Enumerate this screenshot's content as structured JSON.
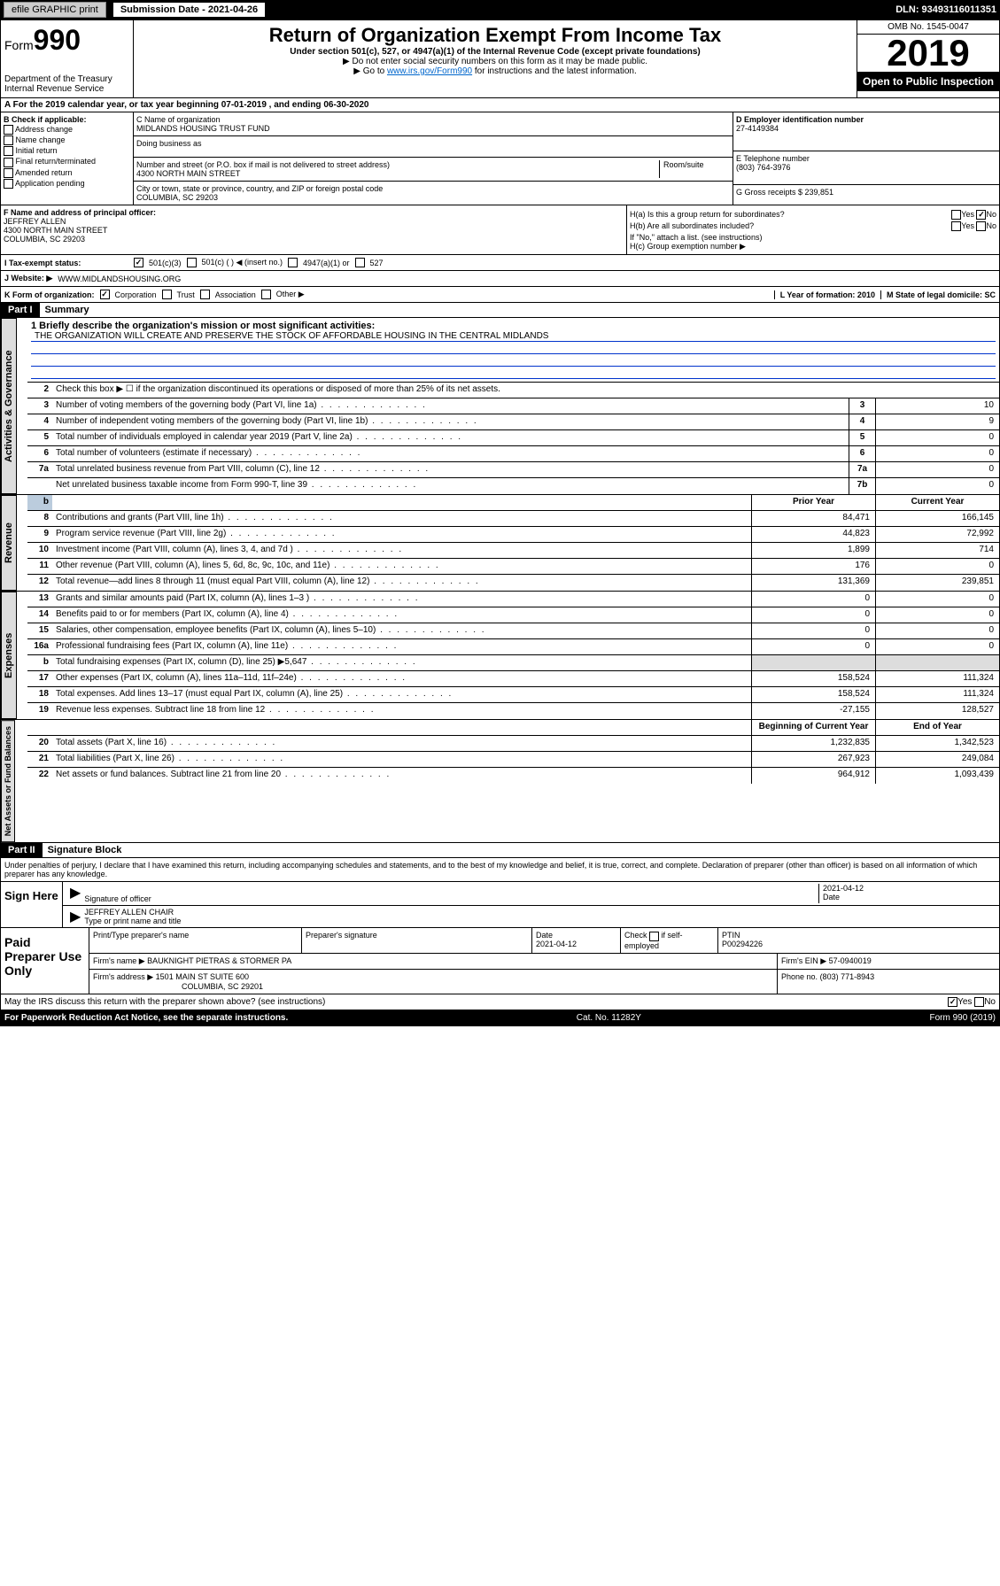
{
  "topbar": {
    "efile": "efile GRAPHIC print",
    "sub_label": "Submission Date - 2021-04-26",
    "dln": "DLN: 93493116011351"
  },
  "header": {
    "form_label": "Form",
    "form_num": "990",
    "dept": "Department of the Treasury",
    "irs": "Internal Revenue Service",
    "title": "Return of Organization Exempt From Income Tax",
    "subtitle": "Under section 501(c), 527, or 4947(a)(1) of the Internal Revenue Code (except private foundations)",
    "note1": "▶ Do not enter social security numbers on this form as it may be made public.",
    "note2_pre": "▶ Go to ",
    "note2_link": "www.irs.gov/Form990",
    "note2_post": " for instructions and the latest information.",
    "omb": "OMB No. 1545-0047",
    "year": "2019",
    "open": "Open to Public Inspection"
  },
  "line_a": "A For the 2019 calendar year, or tax year beginning 07-01-2019    , and ending 06-30-2020",
  "box_b": {
    "label": "B Check if applicable:",
    "opts": [
      "Address change",
      "Name change",
      "Initial return",
      "Final return/terminated",
      "Amended return",
      "Application pending"
    ]
  },
  "box_c": {
    "name_label": "C Name of organization",
    "name": "MIDLANDS HOUSING TRUST FUND",
    "dba_label": "Doing business as",
    "addr_label": "Number and street (or P.O. box if mail is not delivered to street address)",
    "room_label": "Room/suite",
    "addr": "4300 NORTH MAIN STREET",
    "city_label": "City or town, state or province, country, and ZIP or foreign postal code",
    "city": "COLUMBIA, SC  29203"
  },
  "box_d": {
    "label": "D Employer identification number",
    "ein": "27-4149384"
  },
  "box_e": {
    "label": "E Telephone number",
    "phone": "(803) 764-3976"
  },
  "box_g": {
    "label": "G Gross receipts $ 239,851"
  },
  "box_f": {
    "label": "F  Name and address of principal officer:",
    "name": "JEFFREY ALLEN",
    "addr1": "4300 NORTH MAIN STREET",
    "addr2": "COLUMBIA, SC  29203"
  },
  "box_h": {
    "a_label": "H(a)  Is this a group return for subordinates?",
    "b_label": "H(b)  Are all subordinates included?",
    "b_note": "If \"No,\" attach a list. (see instructions)",
    "c_label": "H(c)  Group exemption number ▶",
    "yes": "Yes",
    "no": "No"
  },
  "box_i": {
    "label": "Tax-exempt status:",
    "o1": "501(c)(3)",
    "o2": "501(c) (  ) ◀ (insert no.)",
    "o3": "4947(a)(1) or",
    "o4": "527"
  },
  "box_j": {
    "label": "Website: ▶",
    "url": "WWW.MIDLANDSHOUSING.ORG"
  },
  "box_k": {
    "label": "K Form of organization:",
    "o1": "Corporation",
    "o2": "Trust",
    "o3": "Association",
    "o4": "Other ▶"
  },
  "box_l": {
    "label": "L Year of formation: 2010"
  },
  "box_m": {
    "label": "M State of legal domicile: SC"
  },
  "part1": {
    "num": "Part I",
    "title": "Summary"
  },
  "vlabels": {
    "gov": "Activities & Governance",
    "rev": "Revenue",
    "exp": "Expenses",
    "net": "Net Assets or Fund Balances"
  },
  "summary": {
    "l1_label": "1  Briefly describe the organization's mission or most significant activities:",
    "l1_text": "THE ORGANIZATION WILL CREATE AND PRESERVE THE STOCK OF AFFORDABLE HOUSING IN THE CENTRAL MIDLANDS",
    "l2": "Check this box ▶ ☐  if the organization discontinued its operations or disposed of more than 25% of its net assets.",
    "rows_gov": [
      {
        "n": "3",
        "d": "Number of voting members of the governing body (Part VI, line 1a)",
        "b": "3",
        "v": "10"
      },
      {
        "n": "4",
        "d": "Number of independent voting members of the governing body (Part VI, line 1b)",
        "b": "4",
        "v": "9"
      },
      {
        "n": "5",
        "d": "Total number of individuals employed in calendar year 2019 (Part V, line 2a)",
        "b": "5",
        "v": "0"
      },
      {
        "n": "6",
        "d": "Total number of volunteers (estimate if necessary)",
        "b": "6",
        "v": "0"
      },
      {
        "n": "7a",
        "d": "Total unrelated business revenue from Part VIII, column (C), line 12",
        "b": "7a",
        "v": "0"
      },
      {
        "n": "",
        "d": "Net unrelated business taxable income from Form 990-T, line 39",
        "b": "7b",
        "v": "0"
      }
    ],
    "col_prior": "Prior Year",
    "col_curr": "Current Year",
    "rows_rev": [
      {
        "n": "8",
        "d": "Contributions and grants (Part VIII, line 1h)",
        "p": "84,471",
        "c": "166,145"
      },
      {
        "n": "9",
        "d": "Program service revenue (Part VIII, line 2g)",
        "p": "44,823",
        "c": "72,992"
      },
      {
        "n": "10",
        "d": "Investment income (Part VIII, column (A), lines 3, 4, and 7d )",
        "p": "1,899",
        "c": "714"
      },
      {
        "n": "11",
        "d": "Other revenue (Part VIII, column (A), lines 5, 6d, 8c, 9c, 10c, and 11e)",
        "p": "176",
        "c": "0"
      },
      {
        "n": "12",
        "d": "Total revenue—add lines 8 through 11 (must equal Part VIII, column (A), line 12)",
        "p": "131,369",
        "c": "239,851"
      }
    ],
    "rows_exp": [
      {
        "n": "13",
        "d": "Grants and similar amounts paid (Part IX, column (A), lines 1–3 )",
        "p": "0",
        "c": "0"
      },
      {
        "n": "14",
        "d": "Benefits paid to or for members (Part IX, column (A), line 4)",
        "p": "0",
        "c": "0"
      },
      {
        "n": "15",
        "d": "Salaries, other compensation, employee benefits (Part IX, column (A), lines 5–10)",
        "p": "0",
        "c": "0"
      },
      {
        "n": "16a",
        "d": "Professional fundraising fees (Part IX, column (A), line 11e)",
        "p": "0",
        "c": "0"
      },
      {
        "n": "b",
        "d": "Total fundraising expenses (Part IX, column (D), line 25) ▶5,647",
        "p": "",
        "c": "",
        "shade": true
      },
      {
        "n": "17",
        "d": "Other expenses (Part IX, column (A), lines 11a–11d, 11f–24e)",
        "p": "158,524",
        "c": "111,324"
      },
      {
        "n": "18",
        "d": "Total expenses. Add lines 13–17 (must equal Part IX, column (A), line 25)",
        "p": "158,524",
        "c": "111,324"
      },
      {
        "n": "19",
        "d": "Revenue less expenses. Subtract line 18 from line 12",
        "p": "-27,155",
        "c": "128,527"
      }
    ],
    "col_begin": "Beginning of Current Year",
    "col_end": "End of Year",
    "rows_net": [
      {
        "n": "20",
        "d": "Total assets (Part X, line 16)",
        "p": "1,232,835",
        "c": "1,342,523"
      },
      {
        "n": "21",
        "d": "Total liabilities (Part X, line 26)",
        "p": "267,923",
        "c": "249,084"
      },
      {
        "n": "22",
        "d": "Net assets or fund balances. Subtract line 21 from line 20",
        "p": "964,912",
        "c": "1,093,439"
      }
    ]
  },
  "part2": {
    "num": "Part II",
    "title": "Signature Block"
  },
  "sig": {
    "perjury": "Under penalties of perjury, I declare that I have examined this return, including accompanying schedules and statements, and to the best of my knowledge and belief, it is true, correct, and complete. Declaration of preparer (other than officer) is based on all information of which preparer has any knowledge.",
    "sign_here": "Sign Here",
    "sig_officer": "Signature of officer",
    "date": "Date",
    "date_v": "2021-04-12",
    "name": "JEFFREY ALLEN  CHAIR",
    "name_label": "Type or print name and title"
  },
  "paid": {
    "left": "Paid Preparer Use Only",
    "h1": "Print/Type preparer's name",
    "h2": "Preparer's signature",
    "h3": "Date",
    "h3v": "2021-04-12",
    "h4_pre": "Check",
    "h4_post": "if self-employed",
    "h5": "PTIN",
    "h5v": "P00294226",
    "firm_label": "Firm's name    ▶",
    "firm": "BAUKNIGHT PIETRAS & STORMER PA",
    "firm_ein_label": "Firm's EIN ▶",
    "firm_ein": "57-0940019",
    "addr_label": "Firm's address ▶",
    "addr1": "1501 MAIN ST SUITE 600",
    "addr2": "COLUMBIA, SC  29201",
    "phone_label": "Phone no.",
    "phone": "(803) 771-8943"
  },
  "footer": {
    "q": "May the IRS discuss this return with the preparer shown above? (see instructions)",
    "yes": "Yes",
    "no": "No",
    "pra": "For Paperwork Reduction Act Notice, see the separate instructions.",
    "cat": "Cat. No. 11282Y",
    "form": "Form 990 (2019)"
  }
}
